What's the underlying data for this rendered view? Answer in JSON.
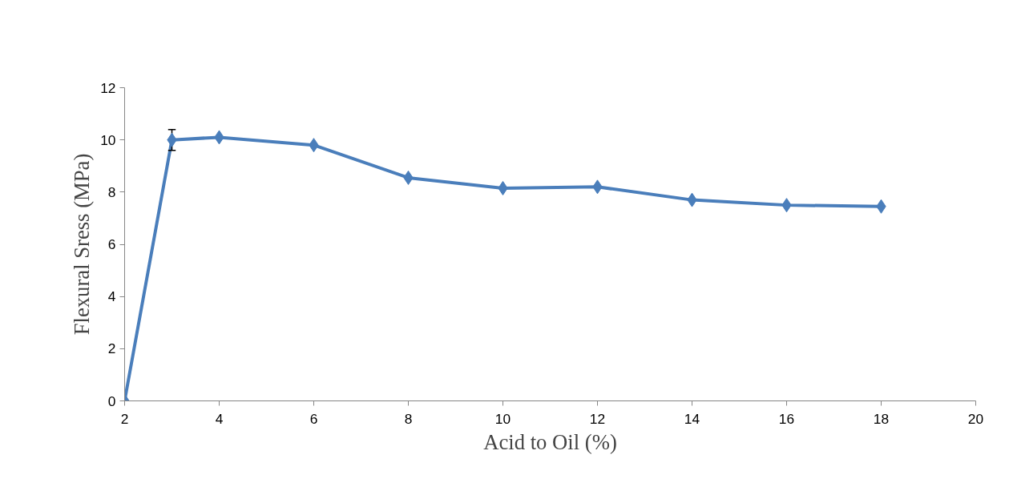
{
  "chart_data": {
    "type": "line",
    "xlabel": "Acid to Oil (%)",
    "ylabel": "Flexural Sress (MPa)",
    "x": [
      2,
      3,
      4,
      6,
      8,
      10,
      12,
      14,
      16,
      18
    ],
    "series": [
      {
        "color": "#4a7ebb",
        "values": [
          0,
          10.0,
          10.1,
          9.8,
          8.55,
          8.15,
          8.2,
          7.7,
          7.5,
          7.45
        ],
        "errors": [
          null,
          0.4,
          null,
          null,
          null,
          null,
          null,
          null,
          null,
          null
        ]
      }
    ],
    "xlim": [
      2,
      20
    ],
    "xticks": [
      2,
      4,
      6,
      8,
      10,
      12,
      14,
      16,
      18,
      20
    ],
    "ylim": [
      0,
      12
    ],
    "yticks": [
      0,
      2,
      4,
      6,
      8,
      10,
      12
    ],
    "grid": false,
    "marker": "diamond",
    "line_style": "solid"
  }
}
